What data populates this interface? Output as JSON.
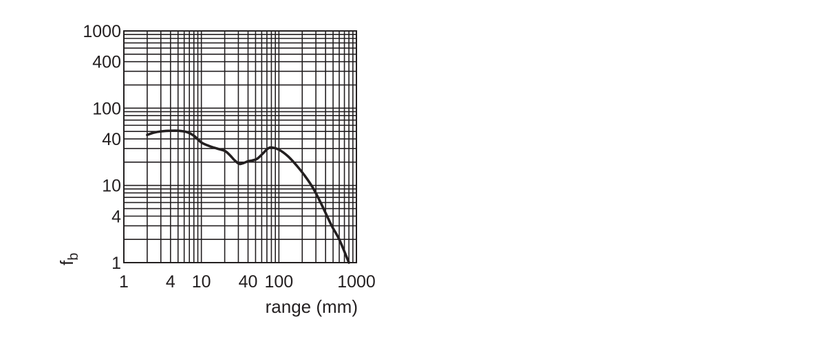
{
  "chart_data": {
    "type": "line",
    "xlabel": "range (mm)",
    "ylabel": {
      "base": "f",
      "subscript": "b"
    },
    "x_scale": "log",
    "y_scale": "log",
    "xlim": [
      1,
      1000
    ],
    "ylim": [
      1,
      1000
    ],
    "grid": true,
    "x_ticks": [
      {
        "value": 1,
        "label": "1"
      },
      {
        "value": 4,
        "label": "4"
      },
      {
        "value": 10,
        "label": "10"
      },
      {
        "value": 40,
        "label": "40"
      },
      {
        "value": 100,
        "label": "100"
      },
      {
        "value": 1000,
        "label": "1000"
      }
    ],
    "y_ticks": [
      {
        "value": 1,
        "label": "1"
      },
      {
        "value": 4,
        "label": "4"
      },
      {
        "value": 10,
        "label": "10"
      },
      {
        "value": 40,
        "label": "40"
      },
      {
        "value": 100,
        "label": "100"
      },
      {
        "value": 400,
        "label": "400"
      },
      {
        "value": 1000,
        "label": "1000"
      }
    ],
    "grid_values": [
      1,
      2,
      3,
      4,
      5,
      6,
      7,
      8,
      9,
      10,
      20,
      30,
      40,
      50,
      60,
      70,
      80,
      90,
      100,
      200,
      300,
      400,
      500,
      600,
      700,
      800,
      900,
      1000
    ],
    "series": [
      {
        "color": "#231f20",
        "x": [
          2,
          2.4,
          3,
          4,
          5,
          6.5,
          8,
          10,
          13,
          16,
          20,
          23,
          27,
          31,
          35,
          40,
          45,
          52,
          60,
          67,
          72,
          80,
          100,
          130,
          170,
          220,
          280,
          360,
          480,
          600,
          800
        ],
        "y": [
          45,
          48,
          50,
          51,
          51,
          49,
          44,
          36,
          32,
          30,
          28,
          25,
          21,
          19,
          19.5,
          20.5,
          21,
          22,
          25,
          28,
          30,
          31,
          29,
          24,
          18,
          13,
          9,
          5.5,
          3,
          2,
          1
        ]
      }
    ]
  }
}
